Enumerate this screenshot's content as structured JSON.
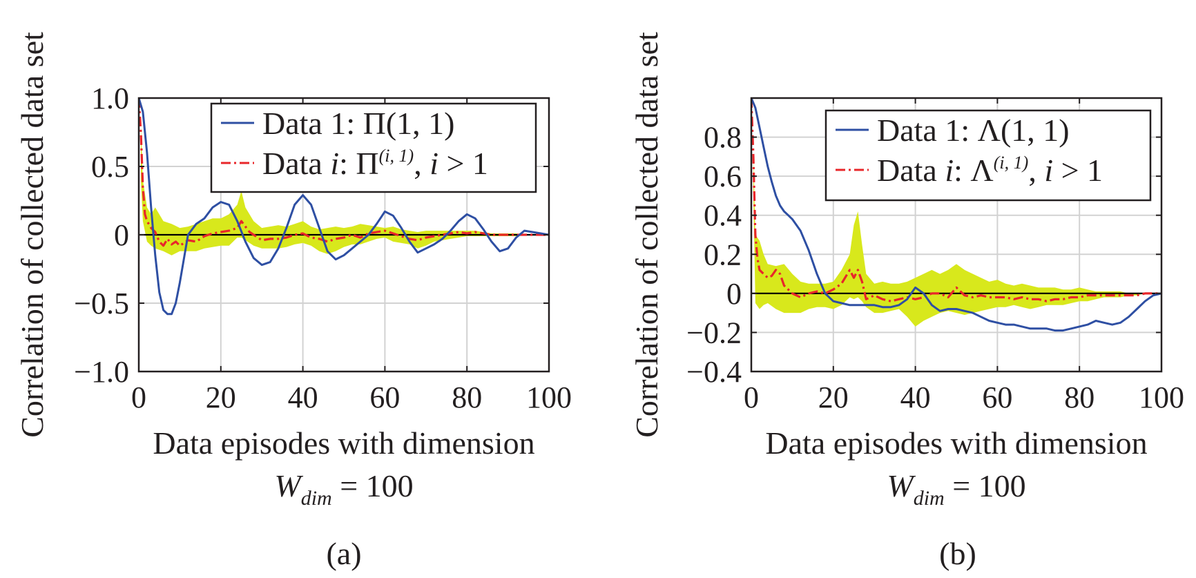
{
  "chart_data": [
    {
      "type": "line",
      "xlabel": "Data episodes with dimension",
      "xlabel_line2": {
        "symbol": "W",
        "subscript": "dim",
        "rest": " = 100"
      },
      "ylabel": "Correlation of collected data set",
      "caption": "(a)",
      "xlim": [
        0,
        100
      ],
      "ylim": [
        -1.0,
        1.0
      ],
      "x_ticks": [
        0,
        20,
        40,
        60,
        80,
        100
      ],
      "x_tick_labels": [
        "0",
        "20",
        "40",
        "60",
        "80",
        "100"
      ],
      "y_ticks": [
        -1.0,
        -0.5,
        0,
        0.5,
        1.0
      ],
      "y_tick_labels": [
        "−1.0",
        "−0.5",
        "0",
        "0.5",
        "1.0"
      ],
      "grid": true,
      "legend_position": "top-right",
      "series": [
        {
          "name": "Data 1: Π(1, 1)",
          "legend": {
            "prefix": "Data 1: ",
            "symbol": "Π",
            "rest": "(1, 1)"
          },
          "color": "#2e4fa3",
          "style": "solid",
          "x": [
            0,
            1,
            2,
            3,
            4,
            5,
            6,
            7,
            8,
            9,
            10,
            12,
            14,
            16,
            18,
            20,
            22,
            24,
            26,
            28,
            30,
            32,
            34,
            36,
            38,
            40,
            42,
            44,
            46,
            48,
            50,
            52,
            54,
            56,
            58,
            60,
            62,
            64,
            66,
            68,
            70,
            72,
            74,
            76,
            78,
            80,
            82,
            84,
            86,
            88,
            90,
            92,
            94,
            96,
            98,
            100
          ],
          "y": [
            1.0,
            0.9,
            0.6,
            0.2,
            -0.15,
            -0.42,
            -0.55,
            -0.58,
            -0.58,
            -0.5,
            -0.35,
            0.0,
            0.08,
            0.12,
            0.2,
            0.24,
            0.22,
            0.1,
            -0.05,
            -0.17,
            -0.22,
            -0.2,
            -0.1,
            0.05,
            0.22,
            0.29,
            0.22,
            0.05,
            -0.12,
            -0.18,
            -0.15,
            -0.1,
            -0.05,
            0.0,
            0.08,
            0.17,
            0.14,
            0.05,
            -0.05,
            -0.13,
            -0.1,
            -0.07,
            -0.03,
            0.03,
            0.1,
            0.15,
            0.12,
            0.04,
            -0.05,
            -0.12,
            -0.1,
            -0.02,
            0.03,
            0.02,
            0.01,
            0.0
          ]
        },
        {
          "name": "Data i: Π^(i, 1), i > 1",
          "legend": {
            "prefix": "Data ",
            "italic_var": "i",
            "sep": ": ",
            "symbol": "Π",
            "superscript": "(i, 1)",
            "suffix_comma": ", ",
            "cond_var": "i",
            "cond": " > 1"
          },
          "color": "#e8262a",
          "style": "dash-dot",
          "x": [
            0,
            0.5,
            1,
            1.5,
            2,
            3,
            4,
            5,
            6,
            7,
            8,
            9,
            10,
            12,
            14,
            16,
            18,
            20,
            22,
            24,
            25,
            26,
            27,
            28,
            30,
            32,
            34,
            36,
            38,
            40,
            42,
            44,
            46,
            48,
            50,
            52,
            54,
            56,
            58,
            60,
            62,
            64,
            66,
            68,
            70,
            72,
            74,
            76,
            78,
            80,
            82,
            84,
            86,
            88,
            90,
            92,
            94,
            96,
            98,
            100
          ],
          "y": [
            1.0,
            0.75,
            0.35,
            0.15,
            0.1,
            0.05,
            0.02,
            -0.05,
            -0.08,
            -0.03,
            -0.07,
            -0.05,
            -0.08,
            -0.04,
            -0.05,
            -0.01,
            0.01,
            0.02,
            0.03,
            0.05,
            0.1,
            0.06,
            0.02,
            0.0,
            -0.04,
            -0.03,
            -0.03,
            -0.02,
            0.0,
            0.01,
            -0.02,
            -0.03,
            -0.05,
            -0.03,
            -0.02,
            0.0,
            -0.02,
            0.01,
            0.02,
            0.03,
            0.01,
            -0.01,
            -0.03,
            -0.04,
            -0.02,
            -0.01,
            0.0,
            0.01,
            0.02,
            0.01,
            0.02,
            0.01,
            0.0,
            0.0,
            0.0,
            0.0,
            0.0,
            0.0,
            0.0,
            0.0
          ]
        }
      ],
      "band": {
        "color": "#d8e81c",
        "x": [
          0.5,
          1,
          2,
          3,
          4,
          6,
          8,
          10,
          12,
          14,
          16,
          18,
          20,
          22,
          24,
          25,
          26,
          28,
          30,
          32,
          34,
          36,
          38,
          40,
          42,
          44,
          46,
          48,
          50,
          52,
          54,
          56,
          58,
          60,
          62,
          64,
          66,
          68,
          70,
          72,
          74,
          76,
          78,
          80,
          82,
          84,
          86,
          88,
          90,
          92,
          94,
          96,
          98,
          100
        ],
        "upper": [
          0.8,
          0.4,
          0.2,
          0.15,
          0.2,
          0.1,
          0.08,
          0.05,
          0.06,
          0.08,
          0.1,
          0.12,
          0.12,
          0.15,
          0.22,
          0.32,
          0.2,
          0.1,
          0.05,
          0.06,
          0.07,
          0.06,
          0.08,
          0.1,
          0.06,
          0.04,
          0.05,
          0.06,
          0.05,
          0.06,
          0.08,
          0.07,
          0.06,
          0.05,
          0.06,
          0.04,
          0.03,
          0.02,
          0.03,
          0.03,
          0.03,
          0.03,
          0.03,
          0.03,
          0.03,
          0.02,
          0.01,
          0.01,
          0.01,
          0.01,
          0.0,
          0.0,
          0.0,
          0.0
        ],
        "lower": [
          0.4,
          0.1,
          -0.05,
          -0.08,
          -0.1,
          -0.12,
          -0.15,
          -0.12,
          -0.12,
          -0.12,
          -0.1,
          -0.09,
          -0.08,
          -0.08,
          -0.02,
          -0.02,
          -0.04,
          -0.08,
          -0.1,
          -0.1,
          -0.1,
          -0.09,
          -0.07,
          -0.06,
          -0.08,
          -0.12,
          -0.14,
          -0.12,
          -0.09,
          -0.07,
          -0.07,
          -0.05,
          -0.03,
          -0.02,
          -0.05,
          -0.06,
          -0.07,
          -0.1,
          -0.08,
          -0.05,
          -0.04,
          -0.03,
          -0.02,
          -0.01,
          -0.01,
          -0.01,
          -0.01,
          -0.01,
          -0.01,
          -0.01,
          0.0,
          0.0,
          0.0,
          0.0
        ]
      }
    },
    {
      "type": "line",
      "xlabel": "Data episodes with dimension",
      "xlabel_line2": {
        "symbol": "W",
        "subscript": "dim",
        "rest": " = 100"
      },
      "ylabel": "Correlation of collected data set",
      "caption": "(b)",
      "xlim": [
        0,
        100
      ],
      "ylim": [
        -0.4,
        1.0
      ],
      "x_ticks": [
        0,
        20,
        40,
        60,
        80,
        100
      ],
      "x_tick_labels": [
        "0",
        "20",
        "40",
        "60",
        "80",
        "100"
      ],
      "y_ticks": [
        -0.4,
        -0.2,
        0,
        0.2,
        0.4,
        0.6,
        0.8
      ],
      "y_tick_labels": [
        "−0.4",
        "−0.2",
        "0",
        "0.2",
        "0.4",
        "0.6",
        "0.8"
      ],
      "grid": true,
      "legend_position": "top-right",
      "series": [
        {
          "name": "Data 1: Λ(1, 1)",
          "legend": {
            "prefix": "Data 1: ",
            "symbol": "Λ",
            "rest": "(1, 1)"
          },
          "color": "#2e4fa3",
          "style": "solid",
          "x": [
            0,
            1,
            2,
            3,
            4,
            5,
            6,
            7,
            8,
            9,
            10,
            12,
            14,
            16,
            18,
            20,
            22,
            24,
            26,
            28,
            30,
            32,
            34,
            36,
            38,
            40,
            42,
            44,
            46,
            48,
            50,
            52,
            54,
            56,
            58,
            60,
            62,
            64,
            66,
            68,
            70,
            72,
            74,
            76,
            78,
            80,
            82,
            84,
            86,
            88,
            90,
            92,
            94,
            96,
            98,
            100
          ],
          "y": [
            1.0,
            0.95,
            0.85,
            0.75,
            0.65,
            0.57,
            0.5,
            0.45,
            0.42,
            0.4,
            0.38,
            0.32,
            0.22,
            0.1,
            0.0,
            -0.04,
            -0.05,
            -0.06,
            -0.06,
            -0.06,
            -0.06,
            -0.07,
            -0.07,
            -0.06,
            -0.03,
            0.03,
            0.0,
            -0.06,
            -0.09,
            -0.08,
            -0.08,
            -0.09,
            -0.1,
            -0.12,
            -0.14,
            -0.15,
            -0.16,
            -0.16,
            -0.17,
            -0.18,
            -0.18,
            -0.18,
            -0.19,
            -0.19,
            -0.18,
            -0.17,
            -0.16,
            -0.14,
            -0.15,
            -0.16,
            -0.15,
            -0.12,
            -0.08,
            -0.04,
            -0.01,
            0.0
          ]
        },
        {
          "name": "Data i: Λ^(i, 1), i > 1",
          "legend": {
            "prefix": "Data ",
            "italic_var": "i",
            "sep": ": ",
            "symbol": "Λ",
            "superscript": "(i, 1)",
            "suffix_comma": ", ",
            "cond_var": "i",
            "cond": " > 1"
          },
          "color": "#e8262a",
          "style": "dash-dot",
          "x": [
            0,
            0.5,
            1,
            1.5,
            2,
            3,
            4,
            5,
            6,
            7,
            8,
            10,
            12,
            14,
            16,
            18,
            20,
            22,
            24,
            25,
            26,
            27,
            28,
            30,
            32,
            34,
            36,
            38,
            40,
            42,
            44,
            46,
            48,
            50,
            52,
            54,
            56,
            58,
            60,
            62,
            64,
            66,
            68,
            70,
            72,
            74,
            76,
            78,
            80,
            82,
            84,
            86,
            88,
            90,
            92,
            94,
            96,
            98,
            100
          ],
          "y": [
            1.0,
            0.7,
            0.3,
            0.18,
            0.12,
            0.1,
            0.08,
            0.09,
            0.12,
            0.1,
            0.04,
            0.0,
            -0.02,
            0.0,
            0.01,
            0.0,
            0.02,
            0.05,
            0.12,
            0.08,
            0.12,
            0.06,
            -0.03,
            -0.01,
            -0.03,
            -0.04,
            -0.03,
            -0.02,
            -0.03,
            -0.02,
            0.0,
            0.0,
            -0.02,
            0.03,
            -0.01,
            -0.02,
            -0.01,
            -0.02,
            -0.02,
            -0.02,
            -0.03,
            -0.02,
            -0.03,
            -0.03,
            -0.04,
            -0.03,
            -0.03,
            -0.02,
            -0.02,
            -0.01,
            -0.01,
            -0.01,
            -0.01,
            -0.01,
            -0.01,
            -0.01,
            0.0,
            0.0,
            0.0
          ]
        }
      ],
      "band": {
        "color": "#d8e81c",
        "x": [
          0.5,
          1,
          2,
          3,
          4,
          6,
          8,
          10,
          12,
          14,
          16,
          18,
          20,
          22,
          24,
          25,
          26,
          27,
          28,
          30,
          32,
          34,
          36,
          38,
          40,
          42,
          44,
          46,
          48,
          50,
          52,
          54,
          56,
          58,
          60,
          62,
          64,
          66,
          68,
          70,
          72,
          74,
          76,
          78,
          80,
          82,
          84,
          86,
          88,
          90,
          92,
          94,
          96,
          98,
          100
        ],
        "upper": [
          0.7,
          0.3,
          0.27,
          0.2,
          0.15,
          0.14,
          0.15,
          0.1,
          0.06,
          0.05,
          0.05,
          0.05,
          0.06,
          0.12,
          0.2,
          0.35,
          0.42,
          0.25,
          0.1,
          0.05,
          0.06,
          0.05,
          0.05,
          0.06,
          0.08,
          0.1,
          0.12,
          0.1,
          0.12,
          0.15,
          0.12,
          0.1,
          0.08,
          0.06,
          0.07,
          0.05,
          0.04,
          0.05,
          0.04,
          0.03,
          0.03,
          0.03,
          0.02,
          0.02,
          0.03,
          0.02,
          0.01,
          0.01,
          0.01,
          0.01,
          0.0,
          0.0,
          0.0,
          0.0,
          0.0
        ],
        "lower": [
          0.5,
          -0.05,
          -0.08,
          -0.06,
          -0.05,
          -0.08,
          -0.1,
          -0.1,
          -0.1,
          -0.08,
          -0.07,
          -0.07,
          -0.08,
          -0.06,
          -0.02,
          -0.03,
          -0.02,
          -0.04,
          -0.07,
          -0.1,
          -0.1,
          -0.09,
          -0.08,
          -0.12,
          -0.17,
          -0.14,
          -0.12,
          -0.1,
          -0.09,
          -0.1,
          -0.11,
          -0.1,
          -0.09,
          -0.08,
          -0.07,
          -0.07,
          -0.06,
          -0.07,
          -0.08,
          -0.07,
          -0.06,
          -0.06,
          -0.06,
          -0.05,
          -0.04,
          -0.04,
          -0.03,
          -0.02,
          -0.02,
          -0.02,
          -0.01,
          -0.01,
          0.0,
          0.0,
          0.0
        ]
      }
    }
  ]
}
